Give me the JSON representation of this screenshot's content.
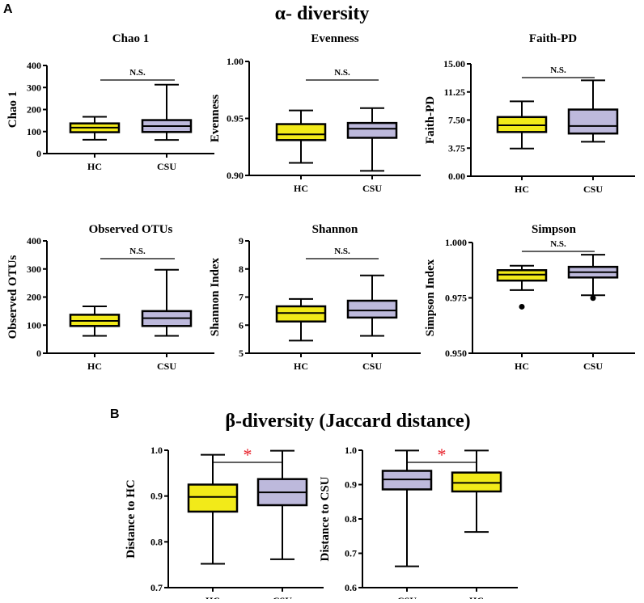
{
  "panel_labels": {
    "a": "A",
    "b": "B"
  },
  "section_titles": {
    "alpha": "α- diversity",
    "beta": "β-diversity (Jaccard distance)"
  },
  "colors": {
    "HC": "#f2ea19",
    "CSU": "#bdb9dc",
    "sig_star": "#e8202a"
  },
  "chart_data": [
    {
      "type": "box",
      "title": "Chao 1",
      "ylabel": "Chao 1",
      "ylim": [
        0,
        400
      ],
      "yticks": [
        "0",
        "100",
        "200",
        "300",
        "400"
      ],
      "categories": [
        "HC",
        "CSU"
      ],
      "significance": "N.S.",
      "boxes": [
        {
          "group": "HC",
          "min": 63,
          "q1": 97,
          "median": 118,
          "q3": 137,
          "max": 167,
          "outliers": []
        },
        {
          "group": "CSU",
          "min": 62,
          "q1": 98,
          "median": 125,
          "q3": 152,
          "max": 313,
          "outliers": []
        }
      ]
    },
    {
      "type": "box",
      "title": "Evenness",
      "ylabel": "Evenness",
      "ylim": [
        0.9,
        1.0
      ],
      "yticks": [
        "0.90",
        "0.95",
        "1.00"
      ],
      "categories": [
        "HC",
        "CSU"
      ],
      "significance": "N.S.",
      "boxes": [
        {
          "group": "HC",
          "min": 0.911,
          "q1": 0.931,
          "median": 0.936,
          "q3": 0.945,
          "max": 0.957,
          "outliers": []
        },
        {
          "group": "CSU",
          "min": 0.904,
          "q1": 0.933,
          "median": 0.941,
          "q3": 0.946,
          "max": 0.959,
          "outliers": []
        }
      ]
    },
    {
      "type": "box",
      "title": "Faith-PD",
      "ylabel": "Faith-PD",
      "ylim": [
        0,
        15
      ],
      "yticks": [
        "0.00",
        "3.75",
        "7.50",
        "11.25",
        "15.00"
      ],
      "categories": [
        "HC",
        "CSU"
      ],
      "significance": "N.S.",
      "boxes": [
        {
          "group": "HC",
          "min": 3.7,
          "q1": 5.9,
          "median": 6.8,
          "q3": 7.9,
          "max": 10.0,
          "outliers": []
        },
        {
          "group": "CSU",
          "min": 4.6,
          "q1": 5.7,
          "median": 6.7,
          "q3": 8.9,
          "max": 12.8,
          "outliers": []
        }
      ]
    },
    {
      "type": "box",
      "title": "Observed OTUs",
      "ylabel": "Observed OTUs",
      "ylim": [
        0,
        400
      ],
      "yticks": [
        "0",
        "100",
        "200",
        "300",
        "400"
      ],
      "categories": [
        "HC",
        "CSU"
      ],
      "significance": "N.S.",
      "boxes": [
        {
          "group": "HC",
          "min": 62,
          "q1": 97,
          "median": 115,
          "q3": 137,
          "max": 167,
          "outliers": []
        },
        {
          "group": "CSU",
          "min": 62,
          "q1": 97,
          "median": 125,
          "q3": 150,
          "max": 297,
          "outliers": []
        }
      ]
    },
    {
      "type": "box",
      "title": "Shannon",
      "ylabel": "Shannon Index",
      "ylim": [
        5,
        9
      ],
      "yticks": [
        "5",
        "6",
        "7",
        "8",
        "9"
      ],
      "categories": [
        "HC",
        "CSU"
      ],
      "significance": "N.S.",
      "boxes": [
        {
          "group": "HC",
          "min": 5.45,
          "q1": 6.13,
          "median": 6.43,
          "q3": 6.67,
          "max": 6.93,
          "outliers": []
        },
        {
          "group": "CSU",
          "min": 5.62,
          "q1": 6.27,
          "median": 6.52,
          "q3": 6.87,
          "max": 7.77,
          "outliers": []
        }
      ]
    },
    {
      "type": "box",
      "title": "Simpson",
      "ylabel": "Simpson Index",
      "ylim": [
        0.95,
        1.0
      ],
      "yticks": [
        "0.950",
        "0.975",
        "1.000"
      ],
      "categories": [
        "HC",
        "CSU"
      ],
      "significance": "N.S.",
      "boxes": [
        {
          "group": "HC",
          "min": 0.9785,
          "q1": 0.9828,
          "median": 0.9855,
          "q3": 0.9875,
          "max": 0.9895,
          "outliers": [
            0.971
          ]
        },
        {
          "group": "CSU",
          "min": 0.9762,
          "q1": 0.9842,
          "median": 0.9866,
          "q3": 0.989,
          "max": 0.9945,
          "outliers": [
            0.9749
          ]
        }
      ]
    },
    {
      "type": "box",
      "title": "",
      "ylabel": "Distance to HC",
      "ylim": [
        0.7,
        1.0
      ],
      "yticks": [
        "0.7",
        "0.8",
        "0.9",
        "1.0"
      ],
      "categories": [
        "HC",
        "CSU"
      ],
      "significance": "*",
      "boxes": [
        {
          "group": "HC",
          "min": 0.752,
          "q1": 0.866,
          "median": 0.898,
          "q3": 0.925,
          "max": 0.99,
          "outliers": []
        },
        {
          "group": "CSU",
          "min": 0.762,
          "q1": 0.88,
          "median": 0.908,
          "q3": 0.937,
          "max": 0.999,
          "outliers": []
        }
      ]
    },
    {
      "type": "box",
      "title": "",
      "ylabel": "Distance to CSU",
      "ylim": [
        0.6,
        1.0
      ],
      "yticks": [
        "0.6",
        "0.7",
        "0.8",
        "0.9",
        "1.0"
      ],
      "categories": [
        "CSU",
        "HC"
      ],
      "significance": "*",
      "boxes": [
        {
          "group": "CSU",
          "min": 0.662,
          "q1": 0.886,
          "median": 0.915,
          "q3": 0.94,
          "max": 0.999,
          "outliers": []
        },
        {
          "group": "HC",
          "min": 0.762,
          "q1": 0.88,
          "median": 0.905,
          "q3": 0.935,
          "max": 0.999,
          "outliers": []
        }
      ]
    }
  ]
}
